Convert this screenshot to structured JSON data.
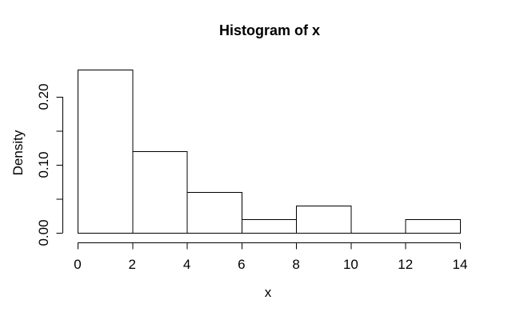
{
  "chart_data": {
    "type": "bar",
    "subtype": "histogram",
    "title": "Histogram of x",
    "xlabel": "x",
    "ylabel": "Density",
    "xlim": [
      0,
      14
    ],
    "ylim": [
      0,
      0.24
    ],
    "grid": false,
    "legend": null,
    "bin_width": 2,
    "bins": [
      {
        "from": 0,
        "to": 2,
        "density": 0.24
      },
      {
        "from": 2,
        "to": 4,
        "density": 0.12
      },
      {
        "from": 4,
        "to": 6,
        "density": 0.06
      },
      {
        "from": 6,
        "to": 8,
        "density": 0.02
      },
      {
        "from": 8,
        "to": 10,
        "density": 0.04
      },
      {
        "from": 10,
        "to": 12,
        "density": 0.0
      },
      {
        "from": 12,
        "to": 14,
        "density": 0.02
      }
    ],
    "x_ticks": [
      {
        "value": 0,
        "label": "0"
      },
      {
        "value": 2,
        "label": "2"
      },
      {
        "value": 4,
        "label": "4"
      },
      {
        "value": 6,
        "label": "6"
      },
      {
        "value": 8,
        "label": "8"
      },
      {
        "value": 10,
        "label": "10"
      },
      {
        "value": 12,
        "label": "12"
      },
      {
        "value": 14,
        "label": "14"
      }
    ],
    "y_ticks": [
      {
        "value": 0.0,
        "label": "0.00"
      },
      {
        "value": 0.05,
        "label": ""
      },
      {
        "value": 0.1,
        "label": "0.10"
      },
      {
        "value": 0.15,
        "label": ""
      },
      {
        "value": 0.2,
        "label": "0.20"
      }
    ],
    "colors": {
      "background": "#ffffff",
      "bar_fill": "#ffffff",
      "stroke": "#000000",
      "text": "#000000"
    }
  }
}
